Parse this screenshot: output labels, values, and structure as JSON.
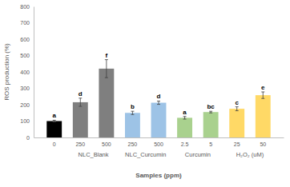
{
  "chart_data": {
    "type": "bar",
    "categories": [
      "0",
      "250",
      "500",
      "250",
      "500",
      "2.5",
      "5",
      "25",
      "50"
    ],
    "groups": [
      null,
      "NLC_Blank",
      "NLC_Blank",
      "NLC_Curcumin",
      "NLC_Curcumin",
      "Curcumin",
      "Curcumin",
      "H₂O₂ (uM)",
      "H₂O₂ (uM)"
    ],
    "values": [
      100,
      215,
      420,
      150,
      212,
      120,
      155,
      175,
      258
    ],
    "errors": [
      5,
      25,
      55,
      10,
      10,
      8,
      5,
      12,
      20
    ],
    "annotations": [
      "a",
      "d",
      "f",
      "b",
      "d",
      "a",
      "bc",
      "c",
      "e"
    ],
    "colors": [
      "#000000",
      "#7f7f7f",
      "#7f7f7f",
      "#9dc3e6",
      "#9dc3e6",
      "#a9d18e",
      "#a9d18e",
      "#ffd966",
      "#ffd966"
    ],
    "x_label": "Samples (ppm)",
    "y_label": "ROS production (%)",
    "ylim": [
      0,
      800
    ],
    "yticks": [
      0,
      100,
      200,
      300,
      400,
      500,
      600,
      700,
      800
    ],
    "grid": false
  }
}
